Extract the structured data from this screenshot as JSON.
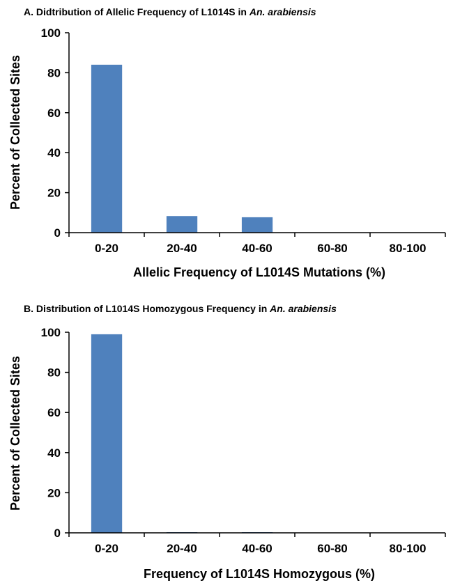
{
  "chart_data": [
    {
      "type": "bar",
      "title": {
        "prefix": "A. Didtribution of Allelic Frequency of L1014S in ",
        "species": "An. arabiensis"
      },
      "xlabel": "Allelic Frequency of L1014S Mutations (%)",
      "ylabel": "Percent of Collected Sites",
      "categories": [
        "0-20",
        "20-40",
        "40-60",
        "60-80",
        "80-100"
      ],
      "values": [
        84,
        8.3,
        7.7,
        0,
        0
      ],
      "ylim": [
        0,
        100
      ],
      "yticks": [
        0,
        20,
        40,
        60,
        80,
        100
      ],
      "bar_color": "#4f81bd",
      "grid": false
    },
    {
      "type": "bar",
      "title": {
        "prefix": "B. Distribution of L1014S Homozygous Frequency in ",
        "species": "An. arabiensis"
      },
      "xlabel": "Frequency of L1014S Homozygous (%)",
      "ylabel": "Percent of Collected Sites",
      "categories": [
        "0-20",
        "20-40",
        "40-60",
        "60-80",
        "80-100"
      ],
      "values": [
        99,
        0.3,
        0.3,
        0,
        0
      ],
      "ylim": [
        0,
        100
      ],
      "yticks": [
        0,
        20,
        40,
        60,
        80,
        100
      ],
      "bar_color": "#4f81bd",
      "grid": false
    }
  ]
}
